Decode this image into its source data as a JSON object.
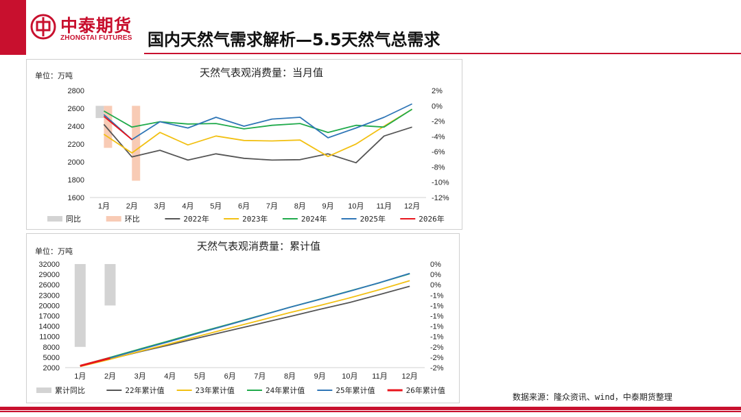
{
  "header": {
    "logo_cn": "中泰期货",
    "logo_en": "ZHONGTAI FUTURES",
    "title": "国内天然气需求解析—5.5天然气总需求",
    "brand_color": "#c8102e"
  },
  "source": "数据来源：隆众资讯、wind，中泰期货整理",
  "chart_data": [
    {
      "type": "line",
      "title": "天然气表观消费量：当月值",
      "unit_label": "单位：万吨",
      "categories": [
        "1月",
        "2月",
        "3月",
        "4月",
        "5月",
        "6月",
        "7月",
        "8月",
        "9月",
        "10月",
        "11月",
        "12月"
      ],
      "y_left": {
        "ticks": [
          "2800",
          "2600",
          "2400",
          "2200",
          "2000",
          "1800",
          "1600"
        ],
        "lim": [
          1600,
          2800
        ]
      },
      "y_right": {
        "ticks": [
          "2%",
          "0%",
          "-2%",
          "-4%",
          "-6%",
          "-8%",
          "-10%",
          "-12%"
        ],
        "lim": [
          -12,
          2
        ]
      },
      "bars": [
        {
          "name": "同比",
          "color": "#d3d3d3",
          "values": [
            -1.6,
            null,
            null,
            null,
            null,
            null,
            null,
            null,
            null,
            null,
            null,
            null
          ]
        },
        {
          "name": "环比",
          "color": "#f8cbb5",
          "values": [
            -5.5,
            -9.8,
            null,
            null,
            null,
            null,
            null,
            null,
            null,
            null,
            null,
            null
          ]
        }
      ],
      "series": [
        {
          "name": "2022年",
          "color": "#555555",
          "values": [
            2420,
            2055,
            2130,
            2020,
            2090,
            2040,
            2020,
            2025,
            2090,
            1990,
            2290,
            2390
          ]
        },
        {
          "name": "2023年",
          "color": "#f2c012",
          "values": [
            2310,
            2100,
            2330,
            2190,
            2290,
            2240,
            2235,
            2245,
            2060,
            2200,
            2400,
            2590
          ]
        },
        {
          "name": "2024年",
          "color": "#1faa4b",
          "values": [
            2570,
            2390,
            2450,
            2425,
            2430,
            2370,
            2410,
            2430,
            2330,
            2410,
            2390,
            2590
          ]
        },
        {
          "name": "2025年",
          "color": "#2e75b6",
          "values": [
            2530,
            2250,
            2450,
            2380,
            2500,
            2400,
            2480,
            2500,
            2270,
            2380,
            2500,
            2650
          ]
        },
        {
          "name": "2026年",
          "color": "#e8141c",
          "values": [
            2510,
            2250,
            null,
            null,
            null,
            null,
            null,
            null,
            null,
            null,
            null,
            null
          ]
        }
      ]
    },
    {
      "type": "line",
      "title": "天然气表观消费量：累计值",
      "unit_label": "单位：万吨",
      "categories": [
        "1月",
        "2月",
        "3月",
        "4月",
        "5月",
        "6月",
        "7月",
        "8月",
        "9月",
        "10月",
        "11月",
        "12月"
      ],
      "y_left": {
        "ticks": [
          "32000",
          "29000",
          "26000",
          "23000",
          "20000",
          "17000",
          "14000",
          "11000",
          "8000",
          "5000",
          "2000"
        ],
        "lim": [
          2000,
          32000
        ]
      },
      "y_right": {
        "ticks": [
          "0%",
          "0%",
          "0%",
          "-1%",
          "-1%",
          "-1%",
          "-1%",
          "-1%",
          "-2%",
          "-2%",
          "-2%"
        ],
        "lim": [
          -2,
          0
        ]
      },
      "bars": [
        {
          "name": "累计同比",
          "color": "#d3d3d3",
          "values": [
            -1.6,
            -0.8,
            null,
            null,
            null,
            null,
            null,
            null,
            null,
            null,
            null,
            null
          ]
        }
      ],
      "series": [
        {
          "name": "22年累计值",
          "color": "#555555",
          "values": [
            2420,
            4475,
            6605,
            8625,
            10715,
            12755,
            14775,
            16800,
            18890,
            20880,
            23170,
            25560
          ]
        },
        {
          "name": "23年累计值",
          "color": "#f2c012",
          "values": [
            2310,
            4410,
            6740,
            8930,
            11220,
            13460,
            15695,
            17940,
            20000,
            22200,
            24600,
            27190
          ]
        },
        {
          "name": "24年累计值",
          "color": "#1faa4b",
          "values": [
            2570,
            4960,
            7410,
            9835,
            12265,
            14635,
            17045,
            19475,
            21805,
            24215,
            26605,
            29195
          ]
        },
        {
          "name": "25年累计值",
          "color": "#2e75b6",
          "values": [
            2530,
            4780,
            7230,
            9610,
            12110,
            14510,
            16990,
            19490,
            21760,
            24140,
            26640,
            29290
          ]
        },
        {
          "name": "26年累计值",
          "color": "#e8141c",
          "values": [
            2510,
            4760,
            null,
            null,
            null,
            null,
            null,
            null,
            null,
            null,
            null,
            null
          ]
        }
      ]
    }
  ]
}
